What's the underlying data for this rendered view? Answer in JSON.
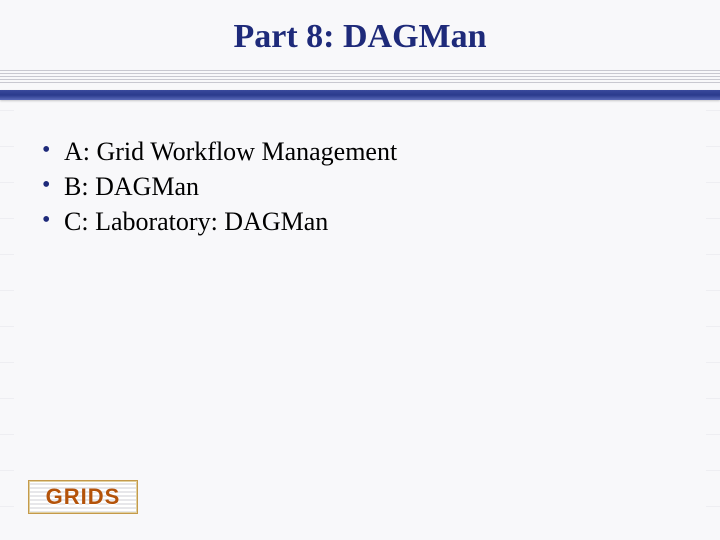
{
  "title": "Part 8: DAGMan",
  "title_color": "#1e2a7a",
  "title_fontsize": 34,
  "bullets": [
    "A: Grid Workflow Management",
    "B: DAGMan",
    "C: Laboratory: DAGMan"
  ],
  "bullet_fontsize": 26,
  "bullet_marker_color": "#1e2a7a",
  "body_text_color": "#000000",
  "background_color": "#f8f8fa",
  "rule_bar_color": "#2a3a8c",
  "logo_text": "GRIDS",
  "logo_text_color": "#b4530a",
  "logo_border_color": "#c59a4a"
}
